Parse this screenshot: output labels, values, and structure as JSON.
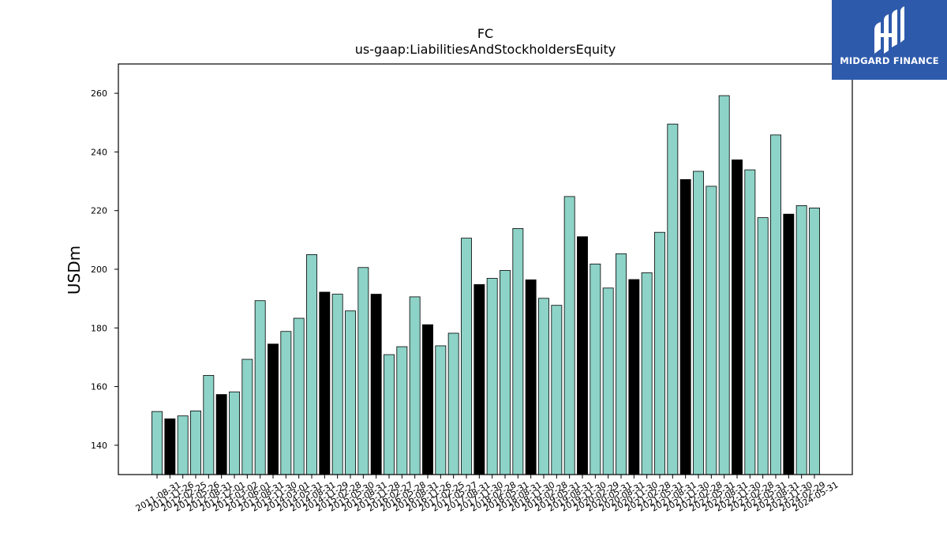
{
  "chart_data": {
    "type": "bar",
    "title": "FC",
    "subtitle": "us-gaap:LiabilitiesAndStockholdersEquity",
    "xlabel": "",
    "ylabel": "USDm",
    "ylim": [
      130,
      270
    ],
    "yticks": [
      140,
      160,
      180,
      200,
      220,
      240,
      260
    ],
    "grid": false,
    "colors": {
      "quarter": "#8dd3c7",
      "fiscal_year_end": "#000000",
      "edge": "#000000"
    },
    "categories": [
      "2011-08-31",
      "2011-11-26",
      "2012-02-25",
      "2012-05-26",
      "2012-08-31",
      "2012-12-01",
      "2013-03-02",
      "2013-06-01",
      "2013-08-31",
      "2013-11-30",
      "2014-03-01",
      "2014-05-31",
      "2014-08-31",
      "2014-11-29",
      "2015-02-28",
      "2015-05-30",
      "2015-08-31",
      "2015-11-28",
      "2016-02-27",
      "2016-05-28",
      "2016-08-31",
      "2016-11-26",
      "2017-02-25",
      "2017-05-27",
      "2017-08-31",
      "2017-11-30",
      "2018-02-28",
      "2018-05-31",
      "2018-08-31",
      "2018-11-30",
      "2019-02-28",
      "2019-05-31",
      "2019-08-31",
      "2019-11-30",
      "2020-02-29",
      "2020-05-31",
      "2020-08-31",
      "2020-11-30",
      "2021-02-28",
      "2021-05-31",
      "2021-08-31",
      "2021-11-30",
      "2022-02-28",
      "2022-05-31",
      "2022-08-31",
      "2022-11-30",
      "2023-02-28",
      "2023-05-31",
      "2023-08-31",
      "2023-11-30",
      "2024-02-29",
      "2024-05-31"
    ],
    "values": [
      151.5,
      149.0,
      150.0,
      151.7,
      163.8,
      157.3,
      158.2,
      169.3,
      189.3,
      174.5,
      178.8,
      183.3,
      205.0,
      192.2,
      191.5,
      185.8,
      200.6,
      191.5,
      170.9,
      173.6,
      190.6,
      181.1,
      173.9,
      178.2,
      210.6,
      194.8,
      196.9,
      199.6,
      213.9,
      196.4,
      190.1,
      187.7,
      224.8,
      211.1,
      201.8,
      193.6,
      205.3,
      196.5,
      198.8,
      212.6,
      249.5,
      230.6,
      233.4,
      228.3,
      259.2,
      237.3,
      233.9,
      217.6,
      245.8,
      218.8,
      221.7,
      220.9
    ],
    "highlight": [
      false,
      true,
      false,
      false,
      false,
      true,
      false,
      false,
      false,
      true,
      false,
      false,
      false,
      true,
      false,
      false,
      false,
      true,
      false,
      false,
      false,
      true,
      false,
      false,
      false,
      true,
      false,
      false,
      false,
      true,
      false,
      false,
      false,
      true,
      false,
      false,
      false,
      true,
      false,
      false,
      false,
      true,
      false,
      false,
      false,
      true,
      false,
      false,
      false,
      true,
      false,
      false
    ]
  },
  "logo": {
    "text": "MIDGARD FINANCE",
    "icon": "midgard-logo-icon"
  }
}
